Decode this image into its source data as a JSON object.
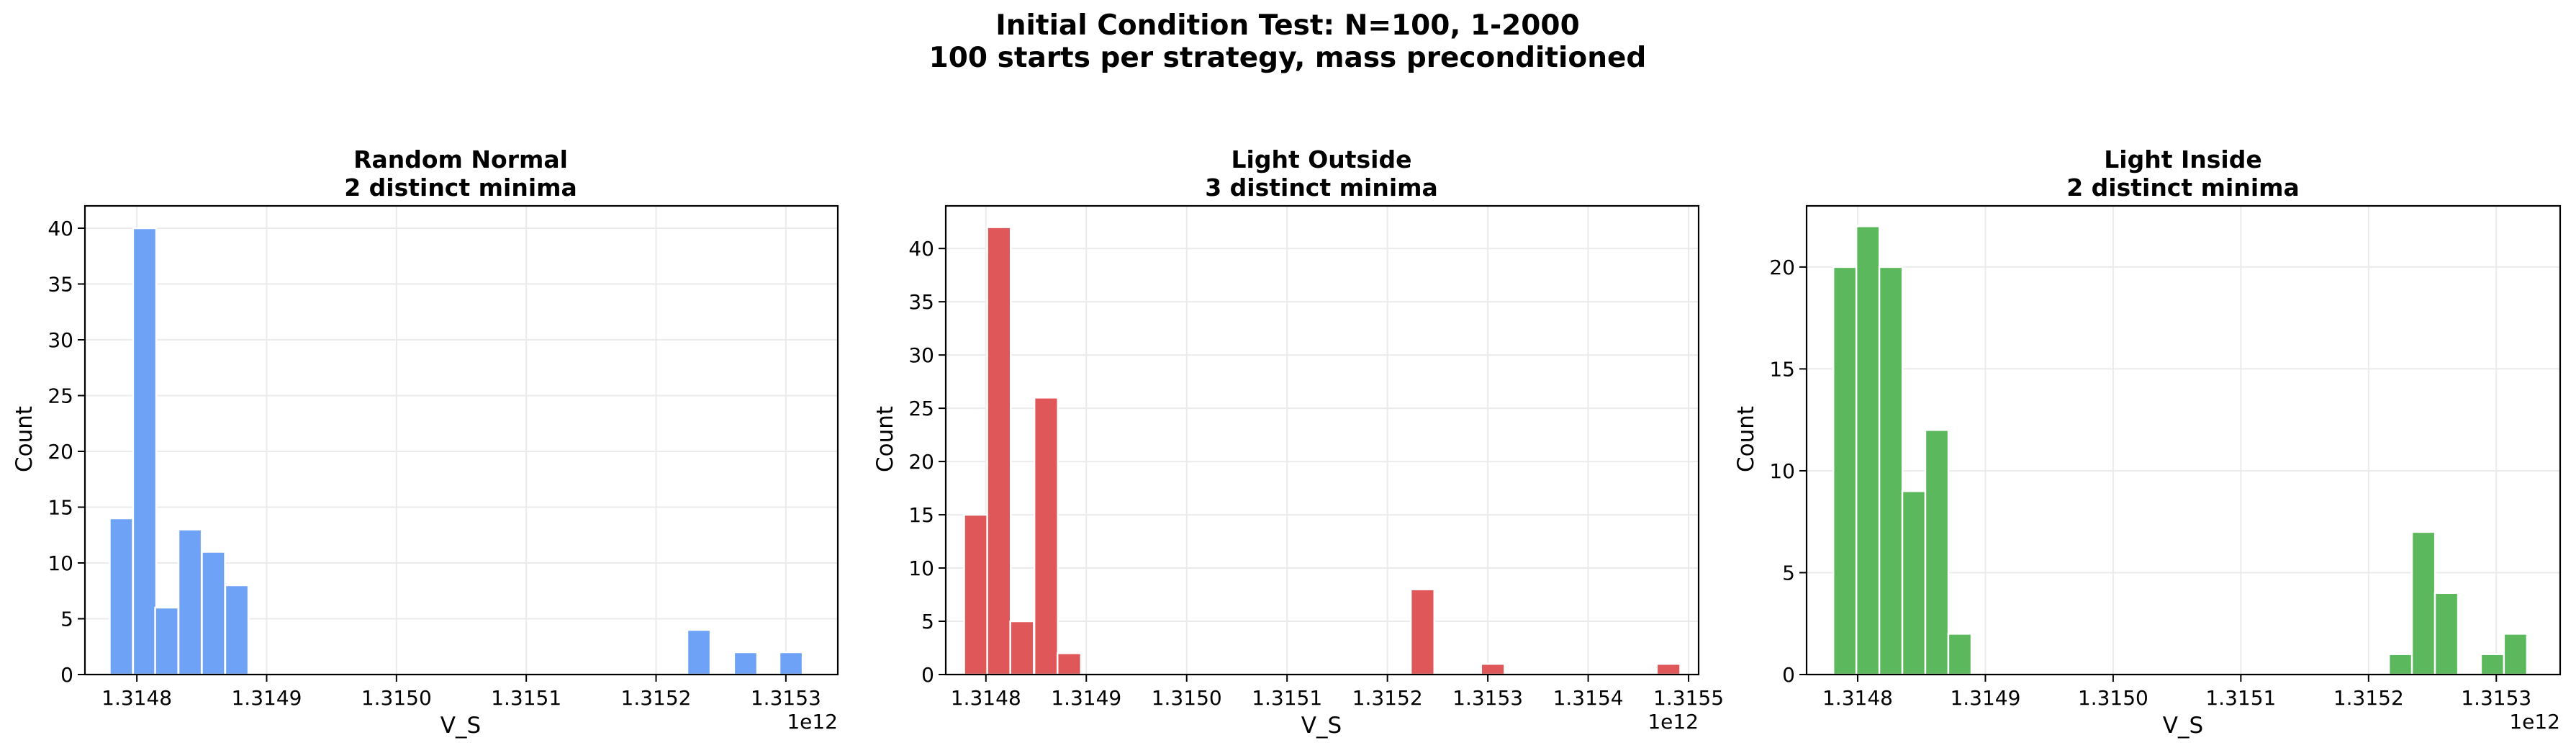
{
  "figure": {
    "title_line1": "Initial Condition Test: N=100, 1-2000",
    "title_line2": "100 starts per strategy, mass preconditioned"
  },
  "chart_data": [
    {
      "type": "bar",
      "title": "Random Normal",
      "subtitle": "2 distinct minima",
      "xlabel": "V_S",
      "ylabel": "Count",
      "x_offset_label": "1e12",
      "color": "#6ea2f7",
      "xlim": [
        1.31476,
        1.31534
      ],
      "ylim": [
        0,
        42
      ],
      "xticks": [
        1.3148,
        1.3149,
        1.315,
        1.3151,
        1.3152,
        1.3153
      ],
      "xtick_labels": [
        "1.3148",
        "1.3149",
        "1.3150",
        "1.3151",
        "1.3152",
        "1.3153"
      ],
      "yticks": [
        0,
        5,
        10,
        15,
        20,
        25,
        30,
        35,
        40
      ],
      "bin_width": 1.78e-05,
      "bins": [
        {
          "x": 1.314788,
          "count": 14
        },
        {
          "x": 1.314806,
          "count": 40
        },
        {
          "x": 1.314823,
          "count": 6
        },
        {
          "x": 1.314841,
          "count": 13
        },
        {
          "x": 1.314859,
          "count": 11
        },
        {
          "x": 1.314877,
          "count": 8
        },
        {
          "x": 1.315233,
          "count": 4
        },
        {
          "x": 1.315269,
          "count": 2
        },
        {
          "x": 1.315304,
          "count": 2
        }
      ],
      "grid": true
    },
    {
      "type": "bar",
      "title": "Light Outside",
      "subtitle": "3 distinct minima",
      "xlabel": "V_S",
      "ylabel": "Count",
      "x_offset_label": "1e12",
      "color": "#e05759",
      "xlim": [
        1.31476,
        1.31551
      ],
      "ylim": [
        0,
        44
      ],
      "xticks": [
        1.3148,
        1.3149,
        1.315,
        1.3151,
        1.3152,
        1.3153,
        1.3154,
        1.3155
      ],
      "xtick_labels": [
        "1.3148",
        "1.3149",
        "1.3150",
        "1.3151",
        "1.3152",
        "1.3153",
        "1.3154",
        "1.3155"
      ],
      "yticks": [
        0,
        5,
        10,
        15,
        20,
        25,
        30,
        35,
        40
      ],
      "bin_width": 2.34e-05,
      "bins": [
        {
          "x": 1.31479,
          "count": 15
        },
        {
          "x": 1.314813,
          "count": 42
        },
        {
          "x": 1.314836,
          "count": 5
        },
        {
          "x": 1.31486,
          "count": 26
        },
        {
          "x": 1.314883,
          "count": 2
        },
        {
          "x": 1.315235,
          "count": 8
        },
        {
          "x": 1.315305,
          "count": 1
        },
        {
          "x": 1.31548,
          "count": 1
        }
      ],
      "grid": true
    },
    {
      "type": "bar",
      "title": "Light Inside",
      "subtitle": "2 distinct minima",
      "xlabel": "V_S",
      "ylabel": "Count",
      "x_offset_label": "1e12",
      "color": "#5cb85c",
      "xlim": [
        1.31476,
        1.31535
      ],
      "ylim": [
        0,
        23
      ],
      "xticks": [
        1.3148,
        1.3149,
        1.315,
        1.3151,
        1.3152,
        1.3153
      ],
      "xtick_labels": [
        "1.3148",
        "1.3149",
        "1.3150",
        "1.3151",
        "1.3152",
        "1.3153"
      ],
      "yticks": [
        0,
        5,
        10,
        15,
        20
      ],
      "bin_width": 1.81e-05,
      "bins": [
        {
          "x": 1.31479,
          "count": 20
        },
        {
          "x": 1.314808,
          "count": 22
        },
        {
          "x": 1.314826,
          "count": 20
        },
        {
          "x": 1.314844,
          "count": 9
        },
        {
          "x": 1.314862,
          "count": 12
        },
        {
          "x": 1.31488,
          "count": 2
        },
        {
          "x": 1.315225,
          "count": 1
        },
        {
          "x": 1.315243,
          "count": 7
        },
        {
          "x": 1.315261,
          "count": 4
        },
        {
          "x": 1.315297,
          "count": 1
        },
        {
          "x": 1.315315,
          "count": 2
        }
      ],
      "grid": true
    }
  ]
}
